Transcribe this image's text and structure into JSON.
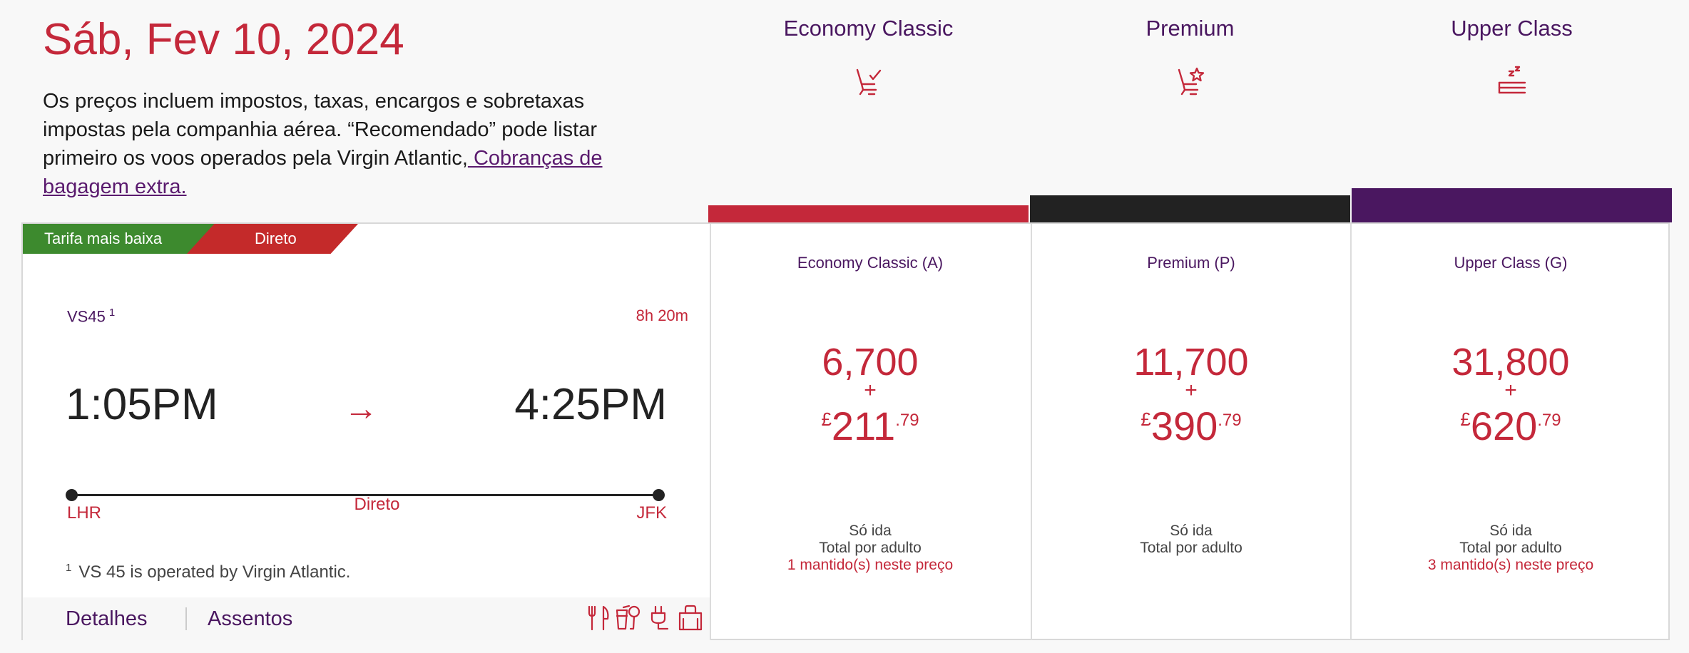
{
  "header": {
    "date": "Sáb, Fev 10, 2024",
    "note_text": "Os preços incluem impostos, taxas, encargos e sobretaxas impostas pela companhia aérea. “Recomendado” pode listar primeiro os voos operados pela Virgin Atlantic,",
    "note_link": " Cobranças de bagagem extra."
  },
  "cabins": [
    {
      "name": "Economy Classic",
      "icon": "seat-check-icon",
      "color": "#c4283a"
    },
    {
      "name": "Premium",
      "icon": "seat-star-icon",
      "color": "#222222"
    },
    {
      "name": "Upper Class",
      "icon": "bed-sleep-icon",
      "color": "#4a1760"
    }
  ],
  "flight": {
    "tags": {
      "lowest": "Tarifa mais baixa",
      "direct": "Direto"
    },
    "number": "VS45",
    "footnote_ref": "1",
    "duration": "8h 20m",
    "depart_time": "1:05PM",
    "arrive_time": "4:25PM",
    "arrow": "→",
    "origin": "LHR",
    "destination": "JFK",
    "stops": "Direto",
    "footnote": "VS 45 is operated by Virgin Atlantic.",
    "tabs": {
      "details": "Detalhes",
      "seats": "Assentos"
    },
    "amenities": [
      "meal-icon",
      "drinks-icon",
      "power-icon",
      "baggage-icon"
    ]
  },
  "fares": [
    {
      "name": "Economy Classic (A)",
      "miles": "6,700",
      "plus": "+",
      "currency": "£",
      "cash_int": "211",
      "cash_dec": ".79",
      "line1": "Só ida",
      "line2": "Total por adulto",
      "held": "1 mantido(s) neste preço"
    },
    {
      "name": "Premium (P)",
      "miles": "11,700",
      "plus": "+",
      "currency": "£",
      "cash_int": "390",
      "cash_dec": ".79",
      "line1": "Só ida",
      "line2": "Total por adulto",
      "held": ""
    },
    {
      "name": "Upper Class (G)",
      "miles": "31,800",
      "plus": "+",
      "currency": "£",
      "cash_int": "620",
      "cash_dec": ".79",
      "line1": "Só ida",
      "line2": "Total por adulto",
      "held": "3 mantido(s) neste preço"
    }
  ]
}
